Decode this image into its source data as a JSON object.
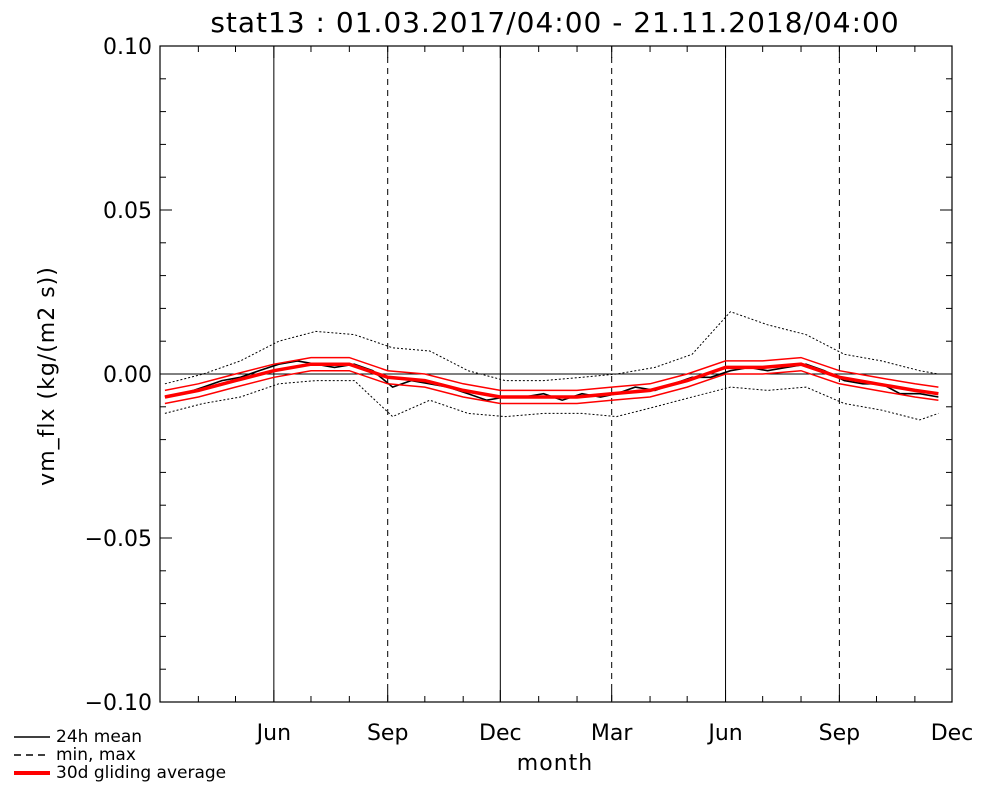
{
  "chart_data": {
    "type": "line",
    "title": "stat13 : 01.03.2017/04:00 - 21.11.2018/04:00",
    "xlabel": "month",
    "ylabel": "vm_flx (kg/(m2 s))",
    "xlim": [
      "2017-03-01",
      "2018-12-01"
    ],
    "ylim": [
      -0.1,
      0.1
    ],
    "y_ticks": [
      "0.10",
      "0.05",
      "0.00",
      "-0.05",
      "-0.10"
    ],
    "x_ticks": [
      "Jun",
      "Sep",
      "Dec",
      "Mar",
      "Jun",
      "Sep",
      "Dec"
    ],
    "reference_lines": [
      {
        "date": "2017-03-01",
        "style": "dashed"
      },
      {
        "date": "2017-06-01",
        "style": "solid"
      },
      {
        "date": "2017-09-01",
        "style": "dashed"
      },
      {
        "date": "2017-12-01",
        "style": "solid"
      },
      {
        "date": "2018-03-01",
        "style": "dashed"
      },
      {
        "date": "2018-06-01",
        "style": "solid"
      },
      {
        "date": "2018-09-01",
        "style": "dashed"
      }
    ],
    "zero_line": 0,
    "legend_position": "bottom-left",
    "legend": [
      {
        "label": "24h mean",
        "style": "solid-thin",
        "color": "#000000"
      },
      {
        "label": "min, max",
        "style": "dashed",
        "color": "#000000"
      },
      {
        "label": "30d gliding average",
        "style": "solid-thick",
        "color": "#ff0000"
      }
    ],
    "series": [
      {
        "name": "24h mean",
        "color": "#000000",
        "x": [
          "2017-03-05",
          "2017-03-20",
          "2017-04-05",
          "2017-04-20",
          "2017-05-05",
          "2017-05-20",
          "2017-06-05",
          "2017-06-20",
          "2017-07-05",
          "2017-07-20",
          "2017-08-05",
          "2017-08-20",
          "2017-09-05",
          "2017-09-20",
          "2017-10-05",
          "2017-10-20",
          "2017-11-05",
          "2017-11-20",
          "2017-12-05",
          "2017-12-20",
          "2018-01-05",
          "2018-01-20",
          "2018-02-05",
          "2018-02-20",
          "2018-03-05",
          "2018-03-20",
          "2018-04-05",
          "2018-04-20",
          "2018-05-05",
          "2018-05-20",
          "2018-06-05",
          "2018-06-20",
          "2018-07-05",
          "2018-07-20",
          "2018-08-05",
          "2018-08-20",
          "2018-09-05",
          "2018-09-20",
          "2018-10-05",
          "2018-10-20",
          "2018-11-05",
          "2018-11-20"
        ],
        "y": [
          -0.007,
          -0.006,
          -0.004,
          -0.002,
          -0.001,
          0.001,
          0.003,
          0.004,
          0.003,
          0.002,
          0.003,
          0.001,
          -0.004,
          -0.002,
          -0.003,
          -0.004,
          -0.006,
          -0.008,
          -0.007,
          -0.007,
          -0.006,
          -0.008,
          -0.006,
          -0.007,
          -0.006,
          -0.004,
          -0.005,
          -0.003,
          -0.001,
          -0.001,
          0.001,
          0.002,
          0.001,
          0.002,
          0.003,
          0.001,
          -0.002,
          -0.003,
          -0.003,
          -0.006,
          -0.006,
          -0.007
        ]
      },
      {
        "name": "min, max",
        "color": "#000000",
        "x": [
          "2017-03-05",
          "2017-04-05",
          "2017-05-05",
          "2017-06-05",
          "2017-07-05",
          "2017-08-05",
          "2017-09-05",
          "2017-10-05",
          "2017-11-05",
          "2017-12-05",
          "2018-01-05",
          "2018-02-05",
          "2018-03-05",
          "2018-04-05",
          "2018-05-05",
          "2018-06-05",
          "2018-07-05",
          "2018-08-05",
          "2018-09-05",
          "2018-10-05",
          "2018-11-05",
          "2018-11-20"
        ],
        "y_min": [
          -0.012,
          -0.009,
          -0.007,
          -0.003,
          -0.002,
          -0.002,
          -0.013,
          -0.008,
          -0.012,
          -0.013,
          -0.012,
          -0.012,
          -0.013,
          -0.01,
          -0.007,
          -0.004,
          -0.005,
          -0.004,
          -0.009,
          -0.011,
          -0.014,
          -0.012
        ],
        "y_max": [
          -0.003,
          0.0,
          0.004,
          0.01,
          0.013,
          0.012,
          0.008,
          0.007,
          0.001,
          -0.002,
          -0.002,
          -0.001,
          0.0,
          0.002,
          0.006,
          0.019,
          0.015,
          0.012,
          0.006,
          0.004,
          0.001,
          0.0
        ]
      },
      {
        "name": "30d gliding average",
        "color": "#ff0000",
        "x": [
          "2017-03-05",
          "2017-04-01",
          "2017-05-01",
          "2017-06-01",
          "2017-07-01",
          "2017-08-01",
          "2017-09-01",
          "2017-10-01",
          "2017-11-01",
          "2017-12-01",
          "2018-01-01",
          "2018-02-01",
          "2018-03-01",
          "2018-04-01",
          "2018-05-01",
          "2018-06-01",
          "2018-07-01",
          "2018-08-01",
          "2018-09-01",
          "2018-10-01",
          "2018-11-01",
          "2018-11-20"
        ],
        "y": [
          -0.007,
          -0.005,
          -0.002,
          0.001,
          0.003,
          0.003,
          -0.001,
          -0.002,
          -0.005,
          -0.007,
          -0.007,
          -0.007,
          -0.006,
          -0.005,
          -0.002,
          0.002,
          0.002,
          0.003,
          -0.001,
          -0.003,
          -0.005,
          -0.006
        ]
      }
    ]
  }
}
